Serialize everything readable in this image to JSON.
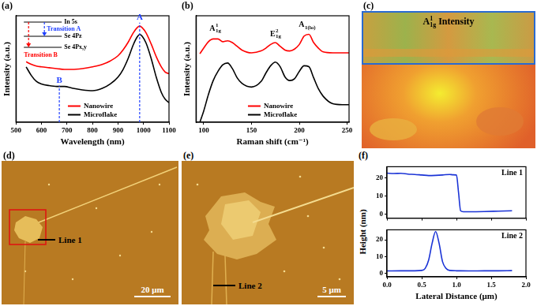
{
  "chart_data": [
    {
      "panel": "(a)",
      "type": "line",
      "x_label": "Wavelength (nm)",
      "y_label": "Intensity (a.u.)",
      "xlim": [
        500,
        1100
      ],
      "xticks": [
        500,
        600,
        700,
        800,
        900,
        1000,
        1100
      ],
      "ylim": [
        -0.15,
        1.1
      ],
      "tick_labels": "x",
      "grid": false,
      "legend": "lower center",
      "x": [
        540,
        560,
        580,
        600,
        630,
        660,
        690,
        720,
        760,
        800,
        840,
        870,
        900,
        920,
        940,
        960,
        975,
        985,
        995,
        1010,
        1030,
        1050,
        1070,
        1085,
        1100
      ],
      "series": [
        {
          "name": "Nanowire",
          "color": "#ff0000",
          "values": [
            0.56,
            0.53,
            0.51,
            0.5,
            0.49,
            0.48,
            0.47,
            0.47,
            0.48,
            0.5,
            0.53,
            0.57,
            0.63,
            0.7,
            0.79,
            0.9,
            0.96,
            0.98,
            0.96,
            0.9,
            0.77,
            0.62,
            0.5,
            0.44,
            0.42
          ]
        },
        {
          "name": "Microflake",
          "color": "#000000",
          "values": [
            0.5,
            0.4,
            0.33,
            0.3,
            0.28,
            0.27,
            0.27,
            0.25,
            0.23,
            0.22,
            0.25,
            0.3,
            0.38,
            0.47,
            0.6,
            0.76,
            0.85,
            0.88,
            0.86,
            0.78,
            0.6,
            0.38,
            0.2,
            0.12,
            0.08
          ]
        }
      ],
      "annotations": [
        {
          "text": "A",
          "x": 985,
          "y": 1.02,
          "color": "#1f3fff"
        },
        {
          "text": "B",
          "x": 670,
          "y": 0.28,
          "color": "#1f3fff"
        }
      ],
      "inset": {
        "levels": [
          "In 5s",
          "Se 4Pz",
          "Se 4Px,y"
        ],
        "transitions": [
          {
            "text": "Transition A",
            "color": "#1f3fff"
          },
          {
            "text": "Transition B",
            "color": "#ff0000"
          }
        ]
      }
    },
    {
      "panel": "(b)",
      "type": "line",
      "x_label": "Raman shift (cm⁻¹)",
      "y_label": "Intensity (a.u.)",
      "xlim": [
        92,
        252
      ],
      "xticks": [
        100,
        150,
        200,
        250
      ],
      "ylim": [
        0,
        1.15
      ],
      "tick_labels": "x",
      "grid": false,
      "legend": "lower center",
      "x": [
        96,
        100,
        105,
        110,
        115,
        120,
        125,
        130,
        135,
        140,
        150,
        160,
        165,
        170,
        175,
        180,
        185,
        190,
        195,
        200,
        205,
        210,
        215,
        220,
        225,
        235,
        245,
        252
      ],
      "series": [
        {
          "name": "Nanowire",
          "color": "#ff0000",
          "values": [
            0.74,
            0.8,
            0.87,
            0.9,
            0.9,
            0.87,
            0.88,
            0.86,
            0.82,
            0.78,
            0.75,
            0.77,
            0.8,
            0.84,
            0.86,
            0.82,
            0.78,
            0.77,
            0.79,
            0.84,
            0.93,
            0.95,
            0.86,
            0.8,
            0.76,
            0.75,
            0.75,
            0.75
          ]
        },
        {
          "name": "Microflake",
          "color": "#000000",
          "values": [
            0.0,
            0.12,
            0.3,
            0.45,
            0.55,
            0.62,
            0.64,
            0.58,
            0.48,
            0.42,
            0.38,
            0.44,
            0.53,
            0.61,
            0.65,
            0.6,
            0.49,
            0.45,
            0.47,
            0.55,
            0.61,
            0.6,
            0.48,
            0.36,
            0.28,
            0.2,
            0.19,
            0.19
          ]
        }
      ],
      "peak_labels": [
        {
          "text": "A",
          "sup": "1",
          "sub": "1g",
          "x": 112,
          "y": 0.99
        },
        {
          "text": "E",
          "sup": "2",
          "sub": "1g",
          "x": 175,
          "y": 0.93
        },
        {
          "text": "A",
          "sub": "1(lo)",
          "x": 208,
          "y": 1.03
        }
      ]
    },
    {
      "panel": "(f)",
      "y_label": "Height (nm)",
      "x_label": "Lateral Distance (μm)",
      "charts": [
        {
          "type": "line",
          "title": "Line 1",
          "xlim": [
            0,
            2
          ],
          "ylim": [
            -2,
            26
          ],
          "xticks": [
            {
              "value": 0,
              "label": "0.0"
            },
            0.5,
            {
              "value": 1,
              "label": "1.0"
            },
            1.5,
            {
              "value": 2,
              "label": "2.0"
            }
          ],
          "yticks": [
            0,
            10,
            20
          ],
          "tick_labels": "y",
          "grid": false,
          "x": [
            0,
            0.1,
            0.2,
            0.3,
            0.4,
            0.5,
            0.6,
            0.7,
            0.8,
            0.9,
            0.95,
            1.0,
            1.03,
            1.06,
            1.1,
            1.2,
            1.4,
            1.6,
            1.8
          ],
          "series": [
            {
              "color": "#1a33d6",
              "values": [
                22.5,
                22.3,
                22.4,
                22,
                21.8,
                21.5,
                21.2,
                21.3,
                21.5,
                21.8,
                21.6,
                21.5,
                12,
                2,
                1.5,
                1.5,
                1.6,
                1.8,
                2.0
              ]
            }
          ]
        },
        {
          "type": "line",
          "title": "Line 2",
          "xlim": [
            0,
            2
          ],
          "ylim": [
            -2,
            26
          ],
          "xticks": [
            {
              "value": 0,
              "label": "0.0"
            },
            0.5,
            {
              "value": 1,
              "label": "1.0"
            },
            1.5,
            {
              "value": 2,
              "label": "2.0"
            }
          ],
          "yticks": [
            0,
            10,
            20
          ],
          "grid": false,
          "x": [
            0,
            0.2,
            0.4,
            0.5,
            0.55,
            0.6,
            0.65,
            0.7,
            0.75,
            0.8,
            0.85,
            0.9,
            1.0,
            1.2,
            1.4,
            1.6,
            1.8
          ],
          "series": [
            {
              "color": "#1a33d6",
              "values": [
                1.5,
                1.6,
                1.6,
                1.8,
                3,
                8,
                18,
                25,
                18,
                7,
                3,
                1.8,
                1.6,
                1.5,
                1.6,
                1.6,
                1.7
              ]
            }
          ]
        }
      ]
    }
  ],
  "images": [
    {
      "panel": "(c)",
      "title": {
        "text": "A",
        "sup": "1",
        "sub": "1g",
        "after": " Intensity"
      }
    },
    {
      "panel": "(d)",
      "line_label": "Line 1",
      "scale_bar": "20 μm"
    },
    {
      "panel": "(e)",
      "line_label": "Line 2",
      "scale_bar": "5 μm"
    }
  ]
}
